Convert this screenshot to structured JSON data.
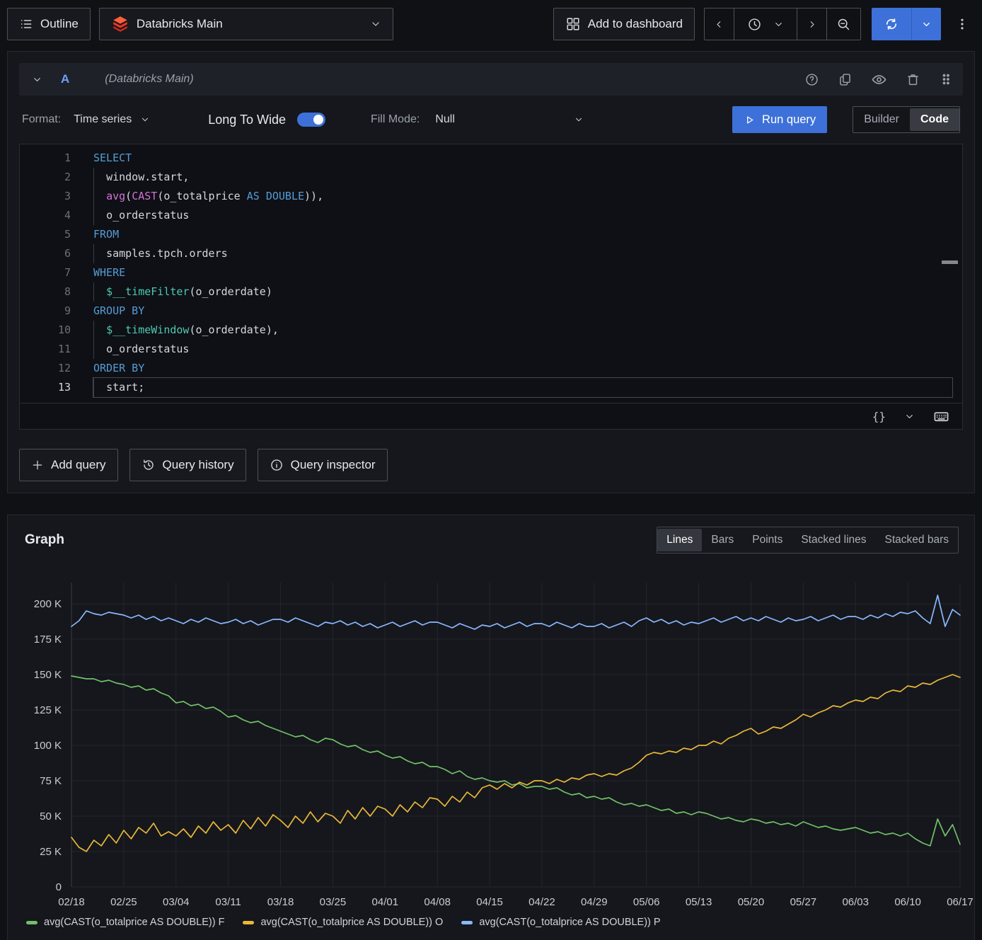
{
  "topbar": {
    "outline_label": "Outline",
    "datasource_name": "Databricks Main",
    "add_to_dashboard_label": "Add to dashboard"
  },
  "query_panel": {
    "ref": "A",
    "datasource_hint": "(Databricks Main)",
    "format_label": "Format:",
    "format_value": "Time series",
    "transform_label": "Long To Wide",
    "transform_enabled": true,
    "fill_mode_label": "Fill Mode:",
    "fill_mode_value": "Null",
    "run_query_label": "Run query",
    "editor_modes": [
      "Builder",
      "Code"
    ],
    "editor_mode_active": "Code",
    "sql_lines": [
      {
        "n": "1",
        "indent": false,
        "tokens": [
          {
            "t": "SELECT",
            "c": "kw"
          }
        ]
      },
      {
        "n": "2",
        "indent": true,
        "tokens": [
          {
            "t": "window.start,",
            "c": "id"
          }
        ]
      },
      {
        "n": "3",
        "indent": true,
        "tokens": [
          {
            "t": "avg",
            "c": "fn"
          },
          {
            "t": "(",
            "c": "id"
          },
          {
            "t": "CAST",
            "c": "fn"
          },
          {
            "t": "(",
            "c": "id"
          },
          {
            "t": "o_totalprice ",
            "c": "id"
          },
          {
            "t": "AS",
            "c": "kw"
          },
          {
            "t": " ",
            "c": "id"
          },
          {
            "t": "DOUBLE",
            "c": "kw"
          },
          {
            "t": ")),",
            "c": "id"
          }
        ]
      },
      {
        "n": "4",
        "indent": true,
        "tokens": [
          {
            "t": "o_orderstatus",
            "c": "id"
          }
        ]
      },
      {
        "n": "5",
        "indent": false,
        "tokens": [
          {
            "t": "FROM",
            "c": "kw"
          }
        ]
      },
      {
        "n": "6",
        "indent": true,
        "tokens": [
          {
            "t": "samples.tpch.orders",
            "c": "id"
          }
        ]
      },
      {
        "n": "7",
        "indent": false,
        "tokens": [
          {
            "t": "WHERE",
            "c": "kw"
          }
        ]
      },
      {
        "n": "8",
        "indent": true,
        "tokens": [
          {
            "t": "$__timeFilter",
            "c": "macro"
          },
          {
            "t": "(o_orderdate)",
            "c": "id"
          }
        ]
      },
      {
        "n": "9",
        "indent": false,
        "tokens": [
          {
            "t": "GROUP BY",
            "c": "kw"
          }
        ]
      },
      {
        "n": "10",
        "indent": true,
        "tokens": [
          {
            "t": "$__timeWindow",
            "c": "macro"
          },
          {
            "t": "(o_orderdate),",
            "c": "id"
          }
        ]
      },
      {
        "n": "11",
        "indent": true,
        "tokens": [
          {
            "t": "o_orderstatus",
            "c": "id"
          }
        ]
      },
      {
        "n": "12",
        "indent": false,
        "tokens": [
          {
            "t": "ORDER BY",
            "c": "kw"
          }
        ]
      },
      {
        "n": "13",
        "indent": true,
        "current": true,
        "tokens": [
          {
            "t": "start;",
            "c": "id"
          }
        ]
      }
    ],
    "editor_footer": {
      "braces": "{}"
    }
  },
  "query_actions": {
    "add": "Add query",
    "history": "Query history",
    "inspector": "Query inspector"
  },
  "graph_panel": {
    "title": "Graph",
    "modes": [
      "Lines",
      "Bars",
      "Points",
      "Stacked lines",
      "Stacked bars"
    ],
    "active_mode": "Lines"
  },
  "chart_data": {
    "type": "line",
    "value_unit": "thousands",
    "ylim": [
      0,
      215
    ],
    "y_ticks": [
      {
        "value": 0,
        "label": "0"
      },
      {
        "value": 25,
        "label": "25 K"
      },
      {
        "value": 50,
        "label": "50 K"
      },
      {
        "value": 75,
        "label": "75 K"
      },
      {
        "value": 100,
        "label": "100 K"
      },
      {
        "value": 125,
        "label": "125 K"
      },
      {
        "value": 150,
        "label": "150 K"
      },
      {
        "value": 175,
        "label": "175 K"
      },
      {
        "value": 200,
        "label": "200 K"
      }
    ],
    "x_tick_labels": [
      "02/18",
      "02/25",
      "03/04",
      "03/11",
      "03/18",
      "03/25",
      "04/01",
      "04/08",
      "04/15",
      "04/22",
      "04/29",
      "05/06",
      "05/13",
      "05/20",
      "05/27",
      "06/03",
      "06/10",
      "06/17"
    ],
    "points_per_x_tick": 7,
    "grid": true,
    "legend_position": "bottom",
    "series": [
      {
        "name": "avg(CAST(o_totalprice AS DOUBLE)) F",
        "color": "#73BF69",
        "values": [
          149,
          148,
          147,
          147,
          145,
          146,
          144,
          143,
          141,
          142,
          139,
          140,
          137,
          135,
          130,
          131,
          128,
          129,
          126,
          127,
          124,
          120,
          121,
          118,
          116,
          117,
          114,
          112,
          110,
          108,
          106,
          107,
          104,
          102,
          105,
          104,
          101,
          99,
          100,
          97,
          95,
          96,
          93,
          91,
          92,
          89,
          87,
          88,
          85,
          85,
          83,
          80,
          82,
          78,
          76,
          77,
          75,
          74,
          75,
          72,
          73,
          70,
          71,
          71,
          69,
          70,
          67,
          65,
          66,
          63,
          64,
          62,
          63,
          60,
          58,
          59,
          57,
          58,
          56,
          54,
          55,
          52,
          53,
          51,
          53,
          52,
          50,
          48,
          49,
          47,
          46,
          48,
          47,
          45,
          46,
          44,
          45,
          43,
          46,
          44,
          42,
          43,
          41,
          40,
          41,
          42,
          40,
          38,
          39,
          37,
          38,
          36,
          38,
          34,
          31,
          29,
          48,
          36,
          44,
          30
        ]
      },
      {
        "name": "avg(CAST(o_totalprice AS DOUBLE)) O",
        "color": "#EAB839",
        "values": [
          35,
          28,
          25,
          33,
          29,
          37,
          31,
          40,
          34,
          42,
          38,
          45,
          36,
          39,
          36,
          41,
          35,
          43,
          38,
          46,
          40,
          44,
          38,
          47,
          41,
          49,
          43,
          51,
          47,
          42,
          50,
          45,
          53,
          46,
          52,
          50,
          45,
          54,
          48,
          56,
          50,
          57,
          55,
          50,
          58,
          53,
          60,
          56,
          63,
          62,
          57,
          64,
          60,
          67,
          63,
          70,
          72,
          69,
          73,
          70,
          74,
          72,
          75,
          75,
          73,
          76,
          74,
          77,
          76,
          79,
          80,
          78,
          80,
          79,
          82,
          84,
          88,
          93,
          95,
          94,
          96,
          95,
          98,
          97,
          100,
          100,
          103,
          101,
          105,
          107,
          110,
          112,
          108,
          110,
          113,
          112,
          115,
          118,
          122,
          120,
          123,
          125,
          128,
          127,
          130,
          132,
          131,
          134,
          133,
          137,
          139,
          138,
          142,
          141,
          144,
          143,
          146,
          148,
          150,
          148
        ]
      },
      {
        "name": "avg(CAST(o_totalprice AS DOUBLE)) P",
        "color": "#8AB8FF",
        "values": [
          184,
          188,
          195,
          193,
          192,
          194,
          193,
          192,
          190,
          192,
          189,
          191,
          188,
          190,
          188,
          186,
          189,
          187,
          190,
          188,
          186,
          187,
          189,
          186,
          188,
          185,
          187,
          189,
          189,
          187,
          190,
          188,
          186,
          184,
          187,
          186,
          188,
          185,
          187,
          184,
          186,
          183,
          185,
          187,
          184,
          186,
          188,
          185,
          187,
          187,
          185,
          183,
          186,
          184,
          182,
          185,
          184,
          186,
          183,
          185,
          187,
          184,
          186,
          186,
          184,
          187,
          185,
          183,
          186,
          184,
          184,
          186,
          183,
          185,
          187,
          184,
          188,
          190,
          187,
          189,
          186,
          188,
          185,
          187,
          186,
          188,
          190,
          187,
          189,
          191,
          188,
          190,
          188,
          191,
          189,
          187,
          190,
          188,
          189,
          191,
          188,
          190,
          192,
          189,
          191,
          191,
          189,
          192,
          190,
          193,
          191,
          194,
          193,
          195,
          190,
          186,
          206,
          184,
          196,
          192
        ]
      }
    ]
  },
  "colors": {
    "accent_blue": "#3d71d9",
    "databricks_red": "#FF3621",
    "series_green": "#73BF69",
    "series_yellow": "#EAB839",
    "series_blue": "#8AB8FF"
  }
}
